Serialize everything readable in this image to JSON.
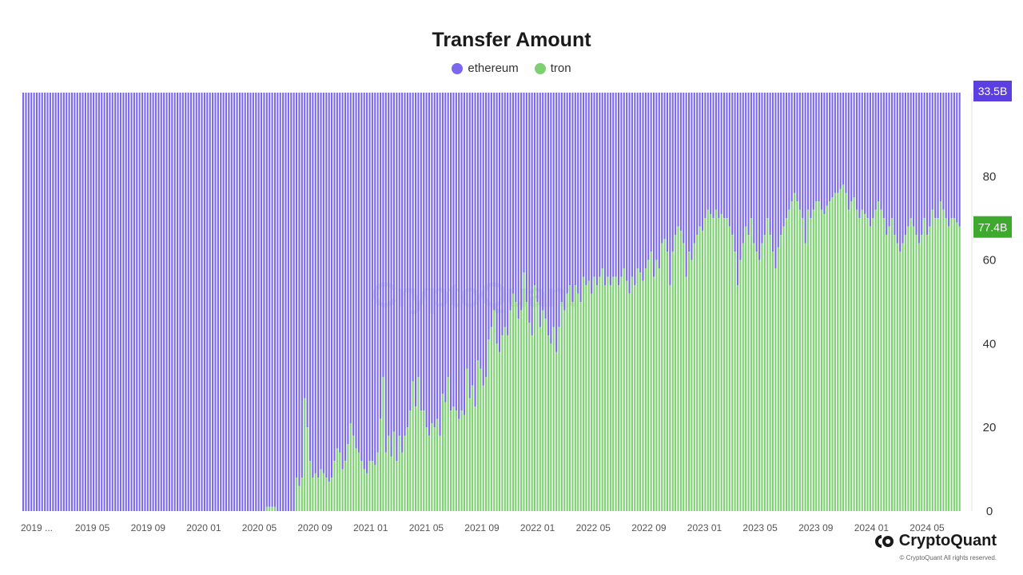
{
  "brand": {
    "name": "CryptoQuant",
    "copyright": "© CryptoQuant All rights reserved."
  },
  "colors": {
    "ethereum": "#7B68EE",
    "tron": "#7ED172",
    "ethereum_badge": "#5B3FE0",
    "tron_badge": "#3DAA2E"
  },
  "chart_data": {
    "type": "bar",
    "stacking": "percent",
    "title": "Transfer Amount",
    "legend_position": "top",
    "series": [
      {
        "name": "ethereum",
        "last_value_label": "33.5B"
      },
      {
        "name": "tron",
        "last_value_label": "77.4B"
      }
    ],
    "x_tick_labels": [
      "2019 ...",
      "2019 05",
      "2019 09",
      "2020 01",
      "2020 05",
      "2020 09",
      "2021 01",
      "2021 05",
      "2021 09",
      "2022 01",
      "2022 05",
      "2022 09",
      "2023 01",
      "2023 05",
      "2023 09",
      "2024 01",
      "2024 05"
    ],
    "y_tick_labels": [
      "0",
      "20",
      "40",
      "60",
      "80"
    ],
    "ylim": [
      0,
      100
    ],
    "y_unit": "%",
    "tron_share_percent": [
      0,
      0,
      0,
      0,
      0,
      0,
      0,
      0,
      0,
      0,
      0,
      0,
      0,
      0,
      0,
      0,
      0,
      0,
      0,
      0,
      0,
      0,
      0,
      0,
      0,
      0,
      0,
      0,
      0,
      0,
      0,
      0,
      0,
      0,
      0,
      0,
      0,
      0,
      0,
      0,
      0,
      0,
      0,
      0,
      0,
      0,
      0,
      0,
      0,
      0,
      0,
      0,
      0,
      0,
      0,
      0,
      0,
      0,
      0,
      0,
      0,
      0,
      0,
      0,
      0,
      0,
      0,
      0,
      0,
      0,
      0,
      0,
      0,
      0,
      0,
      0,
      0,
      0,
      0,
      0,
      0,
      0,
      0,
      0,
      0,
      0,
      0,
      0,
      0,
      0,
      1,
      1,
      1,
      1,
      0,
      0,
      0,
      0,
      0,
      0,
      0,
      8,
      6,
      8,
      27,
      20,
      12,
      8,
      9,
      8,
      10,
      9,
      8,
      7,
      8,
      12,
      15,
      14,
      10,
      12,
      16,
      21,
      18,
      15,
      14,
      12,
      10,
      9,
      12,
      12,
      11,
      14,
      22,
      32,
      14,
      18,
      13,
      19,
      12,
      18,
      14,
      18,
      20,
      24,
      31,
      25,
      32,
      24,
      24,
      20,
      18,
      21,
      20,
      22,
      18,
      28,
      26,
      32,
      24,
      25,
      24,
      22,
      24,
      23,
      34,
      27,
      30,
      25,
      36,
      34,
      30,
      32,
      41,
      44,
      48,
      40,
      38,
      42,
      44,
      42,
      48,
      52,
      50,
      46,
      48,
      57,
      50,
      45,
      42,
      54,
      50,
      44,
      48,
      46,
      42,
      40,
      44,
      38,
      44,
      50,
      48,
      52,
      54,
      50,
      54,
      52,
      50,
      56,
      54,
      55,
      52,
      56,
      54,
      56,
      58,
      54,
      56,
      54,
      56,
      56,
      54,
      56,
      58,
      55,
      52,
      56,
      54,
      58,
      57,
      55,
      58,
      60,
      62,
      56,
      60,
      58,
      64,
      65,
      62,
      54,
      62,
      66,
      68,
      67,
      64,
      56,
      62,
      60,
      64,
      66,
      68,
      67,
      70,
      72,
      71,
      70,
      72,
      70,
      71,
      70,
      70,
      68,
      66,
      62,
      54,
      60,
      64,
      68,
      66,
      70,
      64,
      62,
      60,
      64,
      66,
      70,
      66,
      62,
      58,
      63,
      66,
      68,
      70,
      72,
      74,
      76,
      74,
      72,
      70,
      64,
      72,
      70,
      72,
      74,
      74,
      72,
      71,
      73,
      74,
      75,
      76,
      76,
      77,
      78,
      76,
      72,
      74,
      75,
      72,
      70,
      72,
      71,
      70,
      68,
      70,
      72,
      74,
      72,
      70,
      66,
      68,
      70,
      66,
      64,
      62,
      64,
      66,
      68,
      70,
      68,
      66,
      64,
      66,
      70,
      66,
      68,
      72,
      70,
      70,
      74,
      72,
      70,
      68,
      70,
      70,
      69,
      68
    ]
  }
}
